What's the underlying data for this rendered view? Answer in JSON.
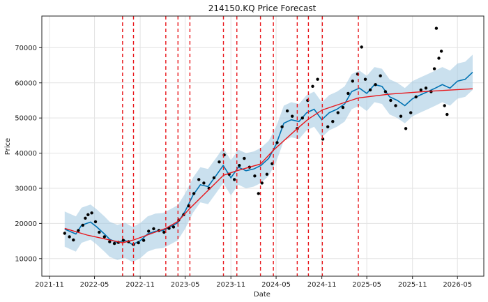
{
  "chart_data": {
    "type": "line",
    "title": "214150.KQ Price Forecast",
    "xlabel": "Date",
    "ylabel": "Price",
    "x_ticks": [
      "2021-11",
      "2022-05",
      "2022-11",
      "2023-05",
      "2023-11",
      "2024-05",
      "2024-11",
      "2025-05",
      "2025-11",
      "2026-05"
    ],
    "y_ticks": [
      10000,
      20000,
      30000,
      40000,
      50000,
      60000,
      70000
    ],
    "xlim": [
      "2021-10-01",
      "2026-08-15"
    ],
    "ylim": [
      5000,
      79000
    ],
    "grid": true,
    "changepoints": [
      "2022-08-22",
      "2022-10-05",
      "2023-02-12",
      "2023-04-02",
      "2023-05-20",
      "2023-10-02",
      "2023-11-25",
      "2024-02-28",
      "2024-04-20",
      "2024-07-25",
      "2024-09-08",
      "2024-11-03",
      "2025-03-28"
    ],
    "trend": {
      "name": "trend",
      "color": "#e8161b",
      "points": [
        [
          "2022-01-01",
          18600
        ],
        [
          "2022-04-01",
          16700
        ],
        [
          "2022-08-22",
          14500
        ],
        [
          "2022-10-05",
          15300
        ],
        [
          "2023-02-12",
          18600
        ],
        [
          "2023-04-02",
          20600
        ],
        [
          "2023-05-20",
          24300
        ],
        [
          "2023-10-02",
          33700
        ],
        [
          "2023-11-25",
          35000
        ],
        [
          "2024-02-28",
          36900
        ],
        [
          "2024-04-20",
          40800
        ],
        [
          "2024-07-25",
          47000
        ],
        [
          "2024-09-08",
          49700
        ],
        [
          "2024-11-03",
          52300
        ],
        [
          "2025-03-28",
          55700
        ],
        [
          "2025-08-01",
          56800
        ],
        [
          "2026-01-01",
          57600
        ],
        [
          "2026-07-01",
          58300
        ]
      ]
    },
    "forecast": {
      "name": "yhat",
      "color": "#0072b2",
      "band_color": "#a6cbe3",
      "band_halfwidth": 5000,
      "points": [
        [
          "2022-01-01",
          18400
        ],
        [
          "2022-02-15",
          17000
        ],
        [
          "2022-03-10",
          19500
        ],
        [
          "2022-04-15",
          20400
        ],
        [
          "2022-05-10",
          19000
        ],
        [
          "2022-06-10",
          17000
        ],
        [
          "2022-07-01",
          15500
        ],
        [
          "2022-08-01",
          14600
        ],
        [
          "2022-09-01",
          15200
        ],
        [
          "2022-10-01",
          14000
        ],
        [
          "2022-11-01",
          15100
        ],
        [
          "2022-12-01",
          17000
        ],
        [
          "2023-01-01",
          17800
        ],
        [
          "2023-02-01",
          18000
        ],
        [
          "2023-03-01",
          19000
        ],
        [
          "2023-04-01",
          20200
        ],
        [
          "2023-05-01",
          23500
        ],
        [
          "2023-06-01",
          28000
        ],
        [
          "2023-07-01",
          31000
        ],
        [
          "2023-08-01",
          30500
        ],
        [
          "2023-09-01",
          33500
        ],
        [
          "2023-10-01",
          36500
        ],
        [
          "2023-11-01",
          33000
        ],
        [
          "2023-12-01",
          36000
        ],
        [
          "2024-01-01",
          35000
        ],
        [
          "2024-02-01",
          35500
        ],
        [
          "2024-03-01",
          36500
        ],
        [
          "2024-04-01",
          38500
        ],
        [
          "2024-05-01",
          42500
        ],
        [
          "2024-06-01",
          48500
        ],
        [
          "2024-07-01",
          49500
        ],
        [
          "2024-08-01",
          49000
        ],
        [
          "2024-09-01",
          51500
        ],
        [
          "2024-10-01",
          52500
        ],
        [
          "2024-11-01",
          49500
        ],
        [
          "2024-12-01",
          51500
        ],
        [
          "2025-01-01",
          52500
        ],
        [
          "2025-02-01",
          54000
        ],
        [
          "2025-03-01",
          57500
        ],
        [
          "2025-04-01",
          58500
        ],
        [
          "2025-05-01",
          57000
        ],
        [
          "2025-06-01",
          59500
        ],
        [
          "2025-07-01",
          59000
        ],
        [
          "2025-08-01",
          56000
        ],
        [
          "2025-09-01",
          55000
        ],
        [
          "2025-10-01",
          53500
        ],
        [
          "2025-11-01",
          55500
        ],
        [
          "2025-12-01",
          56500
        ],
        [
          "2026-01-01",
          57500
        ],
        [
          "2026-02-01",
          58500
        ],
        [
          "2026-03-01",
          59500
        ],
        [
          "2026-04-01",
          58500
        ],
        [
          "2026-05-01",
          60500
        ],
        [
          "2026-06-01",
          61000
        ],
        [
          "2026-07-01",
          63000
        ]
      ]
    },
    "actual": {
      "name": "observed",
      "color": "#000000",
      "points": [
        [
          "2022-01-01",
          17200
        ],
        [
          "2022-01-20",
          16200
        ],
        [
          "2022-02-05",
          15300
        ],
        [
          "2022-02-25",
          18000
        ],
        [
          "2022-03-15",
          19500
        ],
        [
          "2022-03-25",
          21500
        ],
        [
          "2022-04-05",
          22500
        ],
        [
          "2022-04-20",
          23000
        ],
        [
          "2022-05-05",
          20500
        ],
        [
          "2022-05-20",
          17500
        ],
        [
          "2022-06-10",
          16200
        ],
        [
          "2022-07-01",
          14800
        ],
        [
          "2022-07-20",
          14300
        ],
        [
          "2022-08-05",
          14600
        ],
        [
          "2022-08-25",
          15200
        ],
        [
          "2022-09-15",
          14800
        ],
        [
          "2022-10-05",
          14000
        ],
        [
          "2022-10-25",
          14500
        ],
        [
          "2022-11-15",
          15200
        ],
        [
          "2022-12-05",
          17800
        ],
        [
          "2022-12-25",
          18500
        ],
        [
          "2023-01-15",
          18000
        ],
        [
          "2023-02-05",
          17500
        ],
        [
          "2023-02-25",
          18600
        ],
        [
          "2023-03-15",
          19000
        ],
        [
          "2023-04-05",
          21000
        ],
        [
          "2023-04-25",
          22500
        ],
        [
          "2023-05-15",
          25000
        ],
        [
          "2023-06-05",
          28500
        ],
        [
          "2023-06-25",
          32500
        ],
        [
          "2023-07-15",
          31500
        ],
        [
          "2023-08-05",
          30000
        ],
        [
          "2023-08-25",
          33000
        ],
        [
          "2023-09-15",
          37500
        ],
        [
          "2023-10-05",
          39500
        ],
        [
          "2023-10-25",
          34000
        ],
        [
          "2023-11-15",
          32500
        ],
        [
          "2023-12-05",
          36500
        ],
        [
          "2023-12-25",
          38500
        ],
        [
          "2024-01-15",
          36000
        ],
        [
          "2024-02-05",
          33500
        ],
        [
          "2024-02-20",
          28500
        ],
        [
          "2024-03-05",
          31500
        ],
        [
          "2024-03-25",
          34000
        ],
        [
          "2024-04-15",
          37000
        ],
        [
          "2024-05-05",
          43000
        ],
        [
          "2024-05-25",
          47500
        ],
        [
          "2024-06-15",
          52000
        ],
        [
          "2024-07-05",
          50500
        ],
        [
          "2024-07-25",
          47000
        ],
        [
          "2024-08-15",
          50000
        ],
        [
          "2024-09-05",
          55000
        ],
        [
          "2024-09-25",
          59000
        ],
        [
          "2024-10-15",
          61000
        ],
        [
          "2024-11-05",
          44000
        ],
        [
          "2024-11-25",
          47500
        ],
        [
          "2024-12-15",
          49000
        ],
        [
          "2025-01-05",
          51500
        ],
        [
          "2025-01-25",
          53000
        ],
        [
          "2025-02-15",
          57000
        ],
        [
          "2025-03-05",
          60500
        ],
        [
          "2025-03-25",
          62500
        ],
        [
          "2025-04-10",
          70200
        ],
        [
          "2025-04-25",
          61000
        ],
        [
          "2025-05-15",
          58000
        ],
        [
          "2025-06-05",
          59500
        ],
        [
          "2025-06-25",
          62000
        ],
        [
          "2025-07-15",
          57500
        ],
        [
          "2025-08-05",
          55000
        ],
        [
          "2025-08-25",
          53500
        ],
        [
          "2025-09-15",
          50500
        ],
        [
          "2025-10-05",
          47000
        ],
        [
          "2025-10-25",
          51500
        ],
        [
          "2025-11-15",
          56000
        ],
        [
          "2025-12-05",
          58000
        ],
        [
          "2025-12-25",
          58500
        ],
        [
          "2026-01-15",
          57500
        ],
        [
          "2026-01-28",
          64000
        ],
        [
          "2026-02-05",
          75500
        ],
        [
          "2026-02-15",
          67000
        ],
        [
          "2026-02-25",
          69000
        ],
        [
          "2026-03-10",
          53500
        ],
        [
          "2026-03-20",
          51000
        ]
      ]
    }
  }
}
